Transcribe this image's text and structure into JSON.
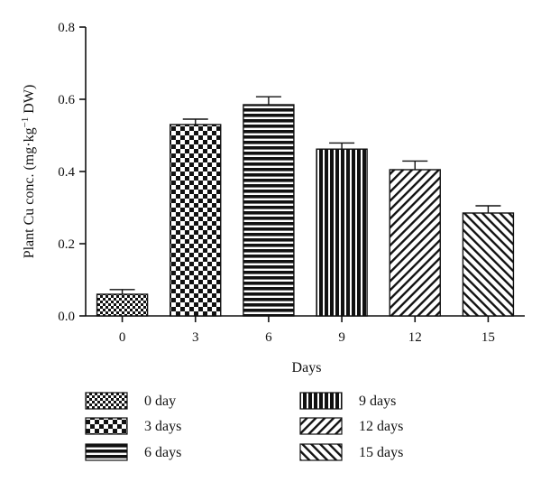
{
  "chart_data": {
    "type": "bar",
    "categories": [
      "0",
      "3",
      "6",
      "9",
      "12",
      "15"
    ],
    "values": [
      0.06,
      0.53,
      0.585,
      0.462,
      0.405,
      0.285
    ],
    "errors": [
      0.013,
      0.015,
      0.022,
      0.017,
      0.024,
      0.02
    ],
    "xlabel": "Days",
    "ylabel": {
      "prefix": "Plant Cu conc. (mg·kg",
      "superscript": "−1",
      "suffix": " DW)"
    },
    "ylim": [
      0,
      0.8
    ],
    "yticks": [
      "0.0",
      "0.2",
      "0.4",
      "0.6",
      "0.8"
    ],
    "grid": false,
    "legend_position": "bottom",
    "legend": [
      {
        "label": "0 day",
        "pattern": "small-checker"
      },
      {
        "label": "3 days",
        "pattern": "large-checker"
      },
      {
        "label": "6 days",
        "pattern": "horizontal-stripes"
      },
      {
        "label": "9 days",
        "pattern": "vertical-stripes"
      },
      {
        "label": "12 days",
        "pattern": "diagonal-right"
      },
      {
        "label": "15 days",
        "pattern": "diagonal-left"
      }
    ]
  },
  "colors": {
    "ink": "#111111",
    "background": "#ffffff"
  }
}
